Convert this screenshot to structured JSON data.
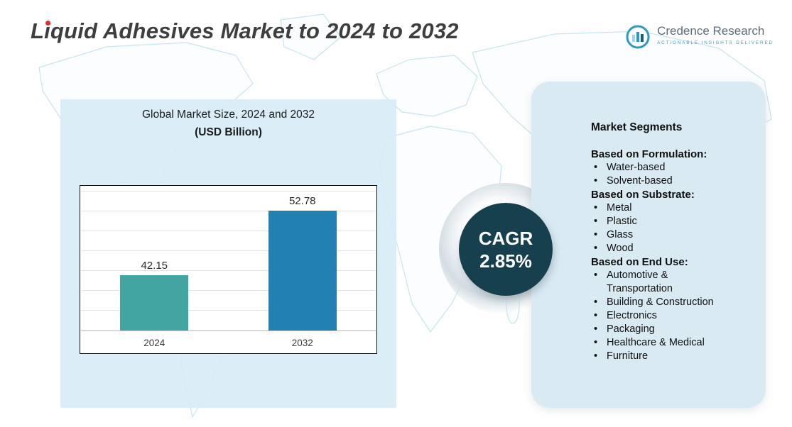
{
  "page": {
    "title": "Liquid Adhesives Market to 2024 to 2032"
  },
  "logo": {
    "name": "Credence Research",
    "tagline": "Actionable Insights Delivered"
  },
  "chart": {
    "title_line1": "Global Market Size, 2024 and 2032",
    "title_line2": "(USD Billion)"
  },
  "chart_data": {
    "type": "bar",
    "title": "Global Market Size, 2024 and 2032 (USD Billion)",
    "categories": [
      "2024",
      "2032"
    ],
    "values": [
      42.15,
      52.78
    ],
    "data_labels": [
      "42.15",
      "52.78"
    ],
    "bar_colors": [
      "#43a5a1",
      "#2381b2"
    ],
    "xlabel": "",
    "ylabel": "",
    "ylim": [
      33,
      56
    ],
    "grid": true,
    "legend": false
  },
  "cagr": {
    "label": "CAGR",
    "value": "2.85%"
  },
  "segments": {
    "heading": "Market Segments",
    "groups": [
      {
        "title": "Based on Formulation:",
        "items": [
          "Water-based",
          "Solvent-based"
        ]
      },
      {
        "title": "Based on Substrate:",
        "items": [
          "Metal",
          "Plastic",
          "Glass",
          "Wood"
        ]
      },
      {
        "title": "Based on End Use:",
        "items": [
          "Automotive & Transportation",
          "Building & Construction",
          "Electronics",
          "Packaging",
          "Healthcare & Medical",
          "Furniture"
        ]
      }
    ]
  },
  "colors": {
    "bar_2024": "#43a5a1",
    "bar_2032": "#2381b2",
    "cagr_circle": "#17404f",
    "panel_light_blue": "#d9eaf3",
    "map_outline": "#c6e5ef",
    "title_text": "#3e3e3e",
    "logo_teal": "#2b9cbc",
    "accent_red": "#e03131"
  }
}
